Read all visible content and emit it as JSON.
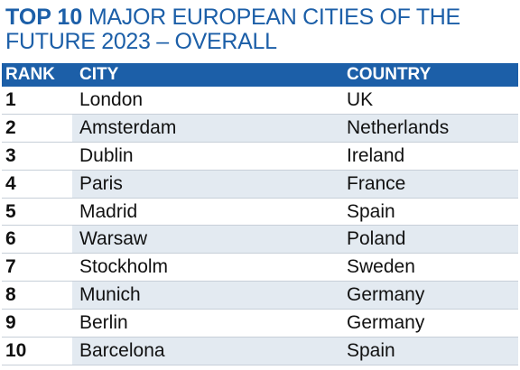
{
  "title": {
    "bold": "TOP 10",
    "rest": " MAJOR EUROPEAN CITIES OF THE FUTURE 2023 – OVERALL"
  },
  "table": {
    "headers": {
      "rank": "RANK",
      "city": "CITY",
      "country": "COUNTRY"
    },
    "rows": [
      {
        "rank": "1",
        "city": "London",
        "country": "UK"
      },
      {
        "rank": "2",
        "city": "Amsterdam",
        "country": "Netherlands"
      },
      {
        "rank": "3",
        "city": "Dublin",
        "country": "Ireland"
      },
      {
        "rank": "4",
        "city": "Paris",
        "country": "France"
      },
      {
        "rank": "5",
        "city": "Madrid",
        "country": "Spain"
      },
      {
        "rank": "6",
        "city": "Warsaw",
        "country": "Poland"
      },
      {
        "rank": "7",
        "city": "Stockholm",
        "country": "Sweden"
      },
      {
        "rank": "8",
        "city": "Munich",
        "country": "Germany"
      },
      {
        "rank": "9",
        "city": "Berlin",
        "country": "Germany"
      },
      {
        "rank": "10",
        "city": "Barcelona",
        "country": "Spain"
      }
    ]
  },
  "colors": {
    "accent": "#1c5fa8",
    "row_alt": "#e3eaf1"
  }
}
